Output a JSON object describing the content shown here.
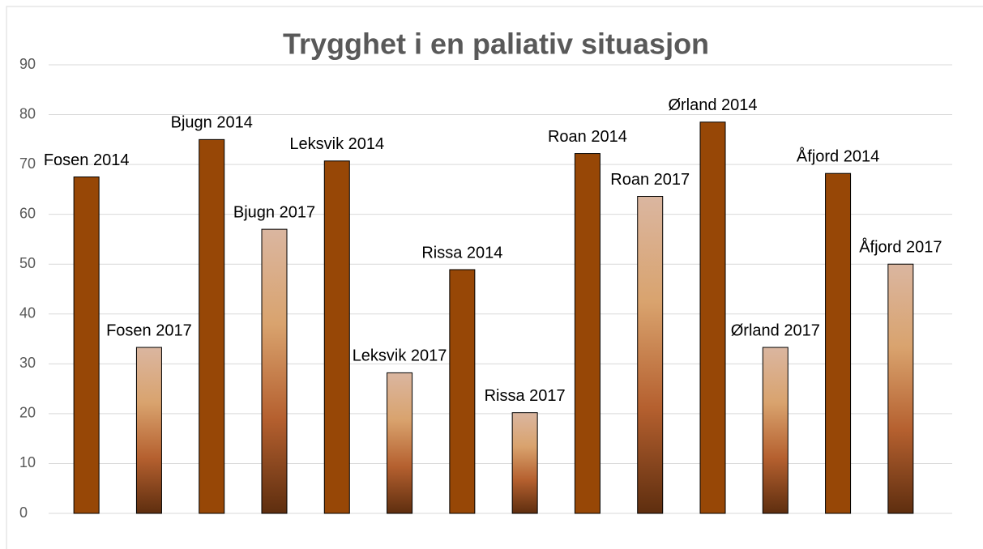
{
  "chart_data": {
    "type": "bar",
    "title": "Trygghet i en paliativ situasjon",
    "categories": [
      "Fosen 2014",
      "Fosen 2017",
      "Bjugn 2014",
      "Bjugn 2017",
      "Leksvik 2014",
      "Leksvik 2017",
      "Rissa 2014",
      "Rissa 2017",
      "Roan 2014",
      "Roan 2017",
      "Ørland 2014",
      "Ørland 2017",
      "Åfjord 2014",
      "Åfjord 2017"
    ],
    "values": [
      67.5,
      33.3,
      75,
      57,
      70.7,
      28.2,
      48.9,
      20.2,
      72.2,
      63.6,
      78.5,
      33.3,
      68.2,
      50
    ],
    "colors": [
      [
        "#974706"
      ],
      [
        "#dab6a0",
        "#d9a36e",
        "#b5602f",
        "#5e2e0f"
      ],
      [
        "#974706"
      ],
      [
        "#dab6a0",
        "#d9a36e",
        "#b5602f",
        "#5e2e0f"
      ],
      [
        "#974706"
      ],
      [
        "#dab6a0",
        "#d9a36e",
        "#b5602f",
        "#5e2e0f"
      ],
      [
        "#974706"
      ],
      [
        "#dab6a0",
        "#d9a36e",
        "#b5602f",
        "#5e2e0f"
      ],
      [
        "#974706"
      ],
      [
        "#dab6a0",
        "#d9a36e",
        "#b5602f",
        "#5e2e0f"
      ],
      [
        "#974706"
      ],
      [
        "#dab6a0",
        "#d9a36e",
        "#b5602f",
        "#5e2e0f"
      ],
      [
        "#974706"
      ],
      [
        "#dab6a0",
        "#d9a36e",
        "#b5602f",
        "#5e2e0f"
      ]
    ],
    "ylim": [
      0,
      90
    ],
    "yticks": [
      0,
      10,
      20,
      30,
      40,
      50,
      60,
      70,
      80,
      90
    ],
    "grid": true
  }
}
